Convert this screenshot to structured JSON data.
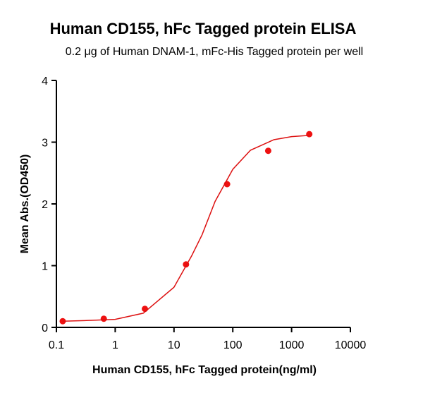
{
  "chart_data": {
    "type": "scatter",
    "title": "Human CD155, hFc Tagged protein ELISA",
    "subtitle": "0.2 μg of Human DNAM-1, mFc-His Tagged protein per well",
    "x_label": "Human CD155, hFc Tagged protein(ng/ml)",
    "y_label": "Mean Abs.(OD450)",
    "xscale": "log",
    "xlim": [
      0.1,
      10000
    ],
    "xticks": [
      0.1,
      1,
      10,
      100,
      1000,
      10000
    ],
    "ylim": [
      0,
      4
    ],
    "yticks": [
      0,
      1,
      2,
      3,
      4
    ],
    "series": [
      {
        "mode": "markers",
        "color": "#ee1111",
        "x": [
          0.128,
          0.64,
          3.2,
          16,
          80,
          400,
          2000
        ],
        "values": [
          0.1,
          0.14,
          0.3,
          1.02,
          2.32,
          2.86,
          3.13
        ]
      },
      {
        "mode": "line",
        "color": "#dd1111",
        "x": [
          0.128,
          0.3,
          1,
          3,
          10,
          20,
          30,
          50,
          100,
          200,
          500,
          1000,
          2000
        ],
        "values": [
          0.1,
          0.11,
          0.13,
          0.23,
          0.65,
          1.16,
          1.5,
          2.04,
          2.56,
          2.87,
          3.04,
          3.09,
          3.11
        ]
      }
    ]
  }
}
